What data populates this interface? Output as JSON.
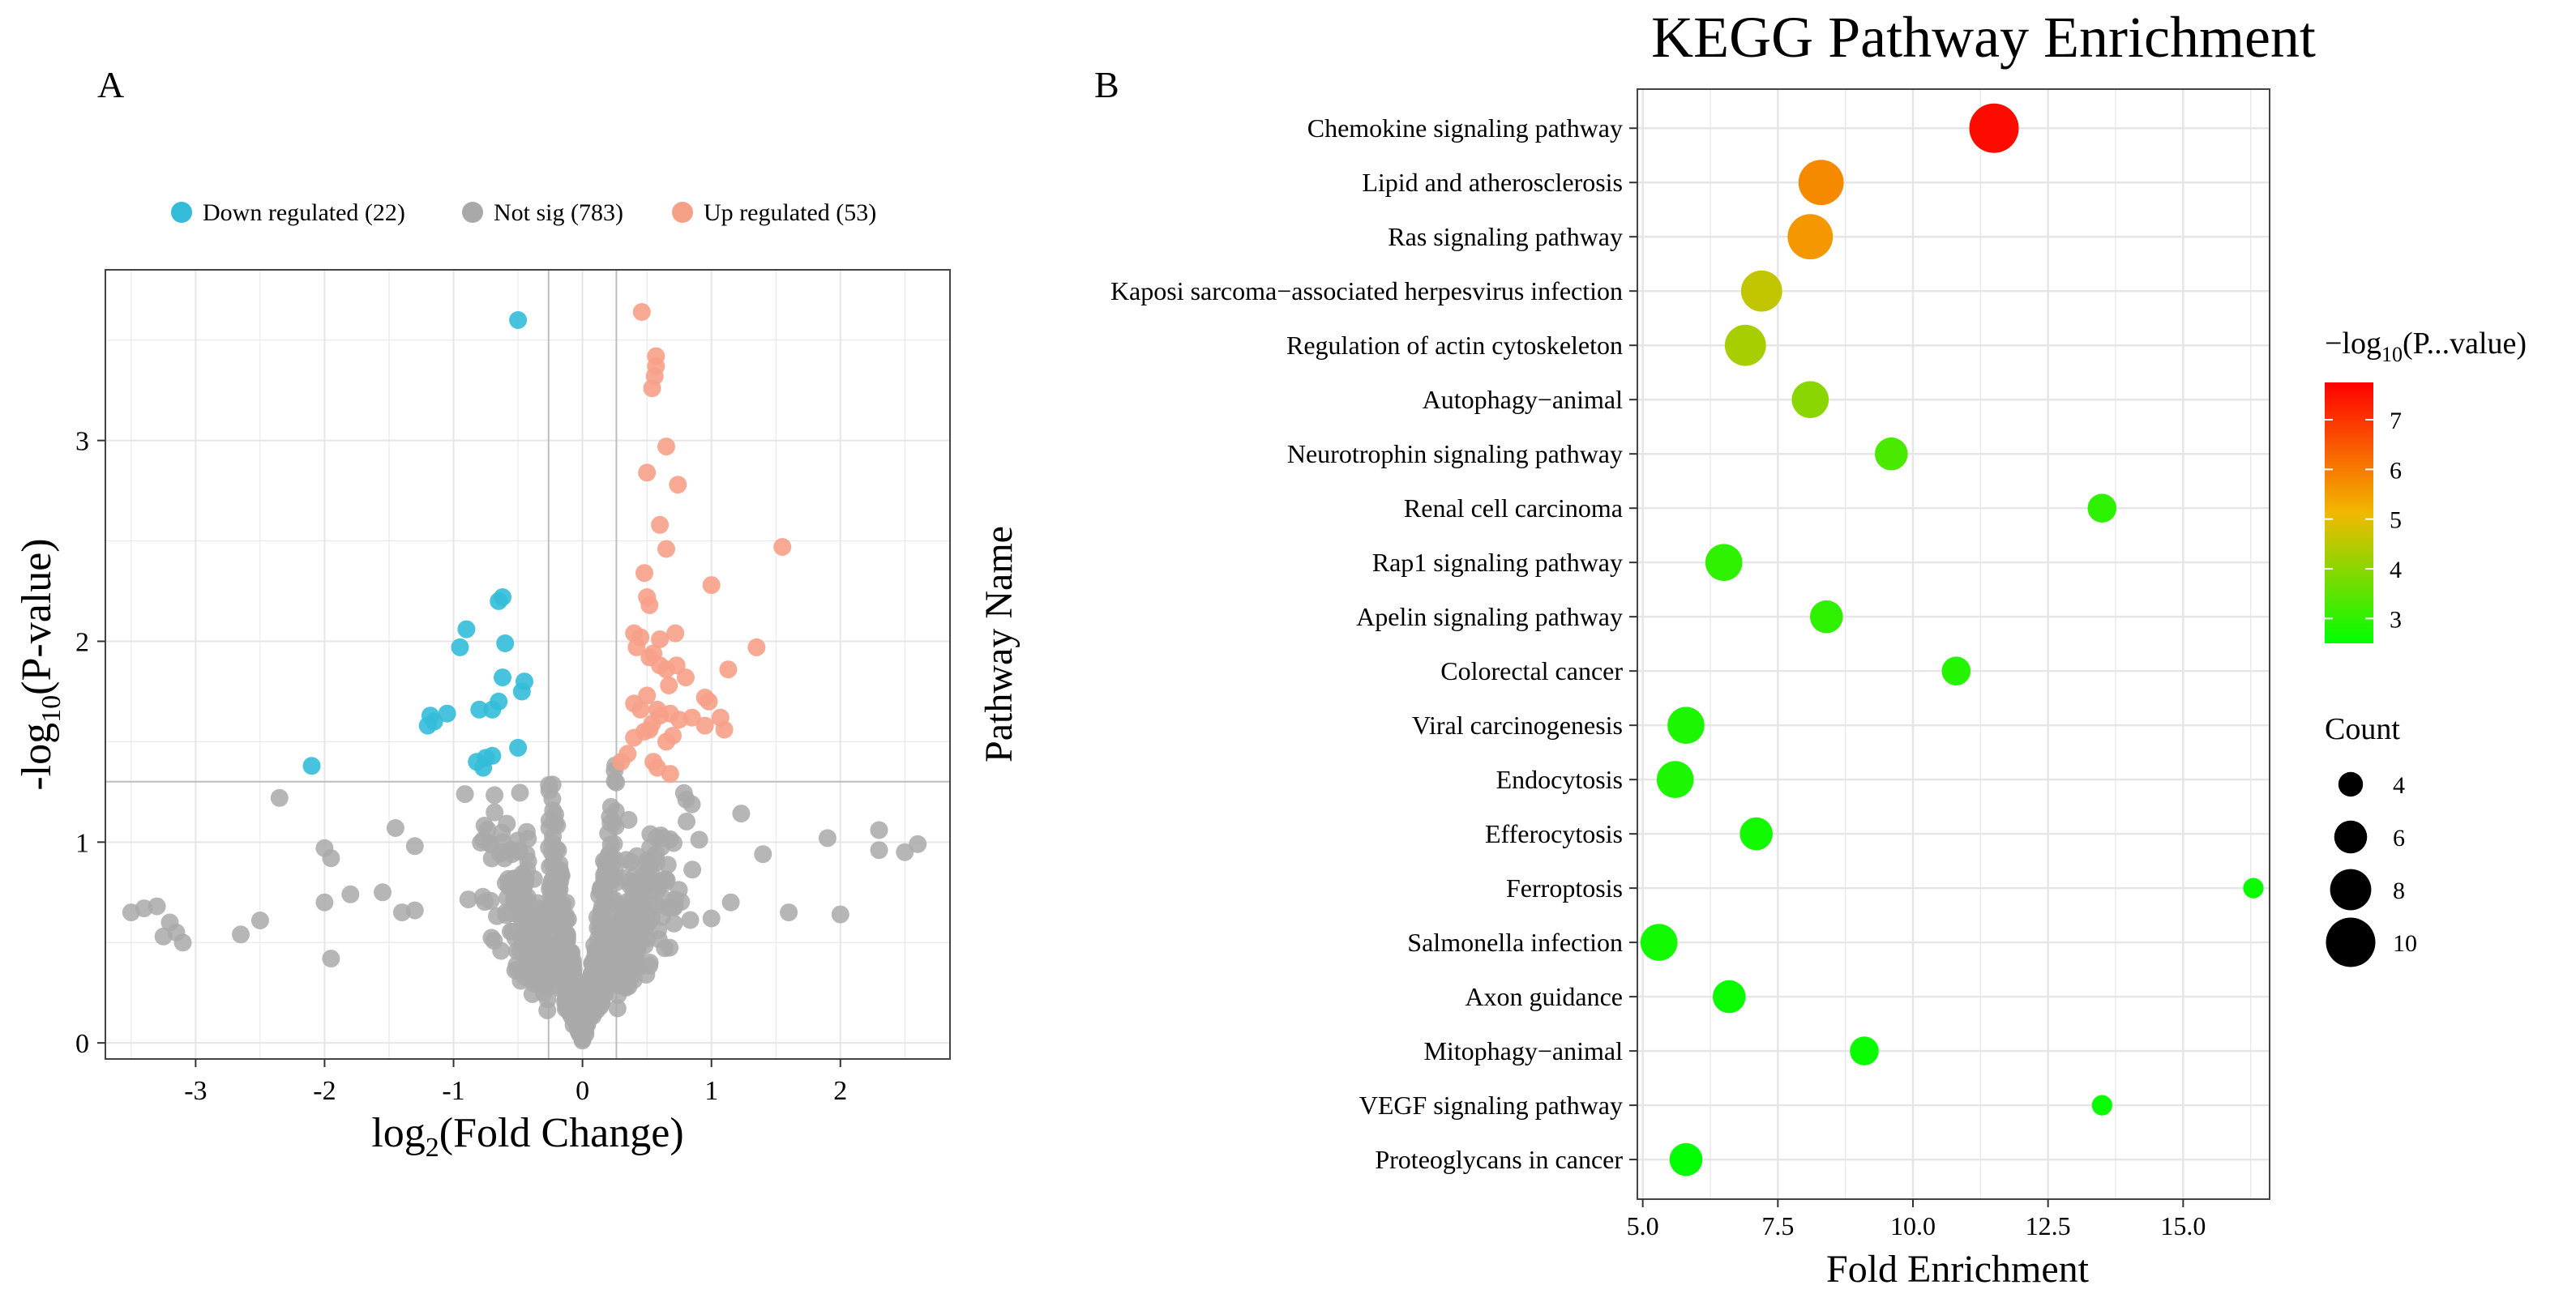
{
  "colors": {
    "down": "#33bcd9",
    "notsig": "#a9a9a9",
    "up": "#f7a088",
    "grid": "#e6e6e6",
    "frame": "#444444",
    "gradient_low": "#00ff00",
    "gradient_mid": "#f2b800",
    "gradient_high": "#ff0000"
  },
  "chart_data": [
    {
      "type": "scatter",
      "panel_label": "A",
      "title": "",
      "xlabel": "log2(Fold Change)",
      "xlabel_base": "log",
      "xlabel_sub": "2",
      "xlabel_rest": "(Fold Change)",
      "ylabel": "-log10(P-value)",
      "ylabel_base": "-log",
      "ylabel_sub": "10",
      "ylabel_rest": "(P-value)",
      "xlim": [
        -3.7,
        2.85
      ],
      "ylim": [
        -0.08,
        3.85
      ],
      "xticks": [
        -3,
        -2,
        -1,
        0,
        1,
        2
      ],
      "yticks": [
        0,
        1,
        2,
        3
      ],
      "thresholds": {
        "x": [
          -0.263,
          0.263
        ],
        "y": 1.301
      },
      "legend": [
        {
          "label": "Down regulated (22)",
          "key": "down"
        },
        {
          "label": "Not sig (783)",
          "key": "notsig"
        },
        {
          "label": "Up regulated (53)",
          "key": "up"
        }
      ],
      "series": [
        {
          "name": "Down regulated",
          "key": "down",
          "points": [
            [
              -0.5,
              3.6
            ],
            [
              -0.62,
              2.22
            ],
            [
              -0.65,
              2.2
            ],
            [
              -0.9,
              2.06
            ],
            [
              -0.95,
              1.97
            ],
            [
              -0.6,
              1.99
            ],
            [
              -0.45,
              1.8
            ],
            [
              -0.47,
              1.75
            ],
            [
              -0.62,
              1.82
            ],
            [
              -0.65,
              1.7
            ],
            [
              -0.7,
              1.66
            ],
            [
              -0.8,
              1.66
            ],
            [
              -1.05,
              1.64
            ],
            [
              -1.18,
              1.63
            ],
            [
              -1.15,
              1.6
            ],
            [
              -1.2,
              1.58
            ],
            [
              -0.5,
              1.47
            ],
            [
              -0.7,
              1.43
            ],
            [
              -0.75,
              1.42
            ],
            [
              -0.82,
              1.4
            ],
            [
              -0.77,
              1.37
            ],
            [
              -2.1,
              1.38
            ]
          ]
        },
        {
          "name": "Up regulated",
          "key": "up",
          "points": [
            [
              0.46,
              3.64
            ],
            [
              0.57,
              3.42
            ],
            [
              0.57,
              3.37
            ],
            [
              0.56,
              3.32
            ],
            [
              0.54,
              3.26
            ],
            [
              0.65,
              2.97
            ],
            [
              0.5,
              2.84
            ],
            [
              0.74,
              2.78
            ],
            [
              0.6,
              2.58
            ],
            [
              0.65,
              2.46
            ],
            [
              1.55,
              2.47
            ],
            [
              0.48,
              2.34
            ],
            [
              0.5,
              2.22
            ],
            [
              0.52,
              2.18
            ],
            [
              0.4,
              2.04
            ],
            [
              0.45,
              2.02
            ],
            [
              0.6,
              2.01
            ],
            [
              0.72,
              2.04
            ],
            [
              1.0,
              2.28
            ],
            [
              1.35,
              1.97
            ],
            [
              0.42,
              1.97
            ],
            [
              0.52,
              1.92
            ],
            [
              0.55,
              1.94
            ],
            [
              0.6,
              1.88
            ],
            [
              0.65,
              1.86
            ],
            [
              0.73,
              1.88
            ],
            [
              0.8,
              1.82
            ],
            [
              1.13,
              1.86
            ],
            [
              0.5,
              1.73
            ],
            [
              0.67,
              1.78
            ],
            [
              0.95,
              1.72
            ],
            [
              0.98,
              1.7
            ],
            [
              0.4,
              1.69
            ],
            [
              0.45,
              1.66
            ],
            [
              0.54,
              1.59
            ],
            [
              0.6,
              1.63
            ],
            [
              0.58,
              1.66
            ],
            [
              0.68,
              1.64
            ],
            [
              0.75,
              1.61
            ],
            [
              0.85,
              1.62
            ],
            [
              0.95,
              1.58
            ],
            [
              1.07,
              1.62
            ],
            [
              1.1,
              1.56
            ],
            [
              0.4,
              1.52
            ],
            [
              0.48,
              1.55
            ],
            [
              0.52,
              1.56
            ],
            [
              0.65,
              1.5
            ],
            [
              0.7,
              1.53
            ],
            [
              0.35,
              1.44
            ],
            [
              0.3,
              1.4
            ],
            [
              0.55,
              1.4
            ],
            [
              0.58,
              1.37
            ],
            [
              0.68,
              1.34
            ]
          ]
        }
      ]
    },
    {
      "type": "scatter",
      "subtype": "bubble",
      "panel_label": "B",
      "title": "KEGG Pathway Enrichment",
      "xlabel": "Fold Enrichment",
      "ylabel": "Pathway Name",
      "xlim": [
        4.9,
        16.6
      ],
      "xticks": [
        5.0,
        7.5,
        10.0,
        12.5,
        15.0
      ],
      "xtick_labels": [
        "5.0",
        "7.5",
        "10.0",
        "12.5",
        "15.0"
      ],
      "color_legend": {
        "title": "−log10(P...value)",
        "title_base": "−log",
        "title_sub": "10",
        "title_rest": "(P...value)",
        "min": 2.5,
        "max": 7.75,
        "ticks": [
          3,
          4,
          5,
          6,
          7
        ]
      },
      "size_legend": {
        "title": "Count",
        "values": [
          4,
          6,
          8,
          10
        ]
      },
      "pathways": [
        {
          "name": "Chemokine signaling pathway",
          "fold": 11.5,
          "count": 10,
          "neglogp": 7.6
        },
        {
          "name": "Lipid and atherosclerosis",
          "fold": 8.3,
          "count": 9,
          "neglogp": 5.8
        },
        {
          "name": "Ras signaling pathway",
          "fold": 8.1,
          "count": 9,
          "neglogp": 5.6
        },
        {
          "name": "Kaposi sarcoma−associated herpesvirus infection",
          "fold": 7.2,
          "count": 8,
          "neglogp": 4.6
        },
        {
          "name": "Regulation of actin cytoskeleton",
          "fold": 6.9,
          "count": 8,
          "neglogp": 4.3
        },
        {
          "name": "Autophagy−animal",
          "fold": 8.1,
          "count": 7,
          "neglogp": 4.0
        },
        {
          "name": "Neurotrophin signaling pathway",
          "fold": 9.6,
          "count": 6,
          "neglogp": 3.3
        },
        {
          "name": "Renal cell carcinoma",
          "fold": 13.5,
          "count": 5,
          "neglogp": 3.0
        },
        {
          "name": "Rap1 signaling pathway",
          "fold": 6.5,
          "count": 7,
          "neglogp": 3.0
        },
        {
          "name": "Apelin signaling pathway",
          "fold": 8.4,
          "count": 6,
          "neglogp": 3.0
        },
        {
          "name": "Colorectal cancer",
          "fold": 10.8,
          "count": 5,
          "neglogp": 2.9
        },
        {
          "name": "Viral carcinogenesis",
          "fold": 5.8,
          "count": 7,
          "neglogp": 2.8
        },
        {
          "name": "Endocytosis",
          "fold": 5.6,
          "count": 7,
          "neglogp": 2.8
        },
        {
          "name": "Efferocytosis",
          "fold": 7.1,
          "count": 6,
          "neglogp": 2.7
        },
        {
          "name": "Ferroptosis",
          "fold": 16.3,
          "count": 3,
          "neglogp": 2.6
        },
        {
          "name": "Salmonella infection",
          "fold": 5.3,
          "count": 7,
          "neglogp": 2.7
        },
        {
          "name": "Axon guidance",
          "fold": 6.6,
          "count": 6,
          "neglogp": 2.6
        },
        {
          "name": "Mitophagy−animal",
          "fold": 9.1,
          "count": 5,
          "neglogp": 2.6
        },
        {
          "name": "VEGF signaling pathway",
          "fold": 13.5,
          "count": 3,
          "neglogp": 2.6
        },
        {
          "name": "Proteoglycans in cancer",
          "fold": 5.8,
          "count": 6,
          "neglogp": 2.5
        }
      ]
    }
  ]
}
